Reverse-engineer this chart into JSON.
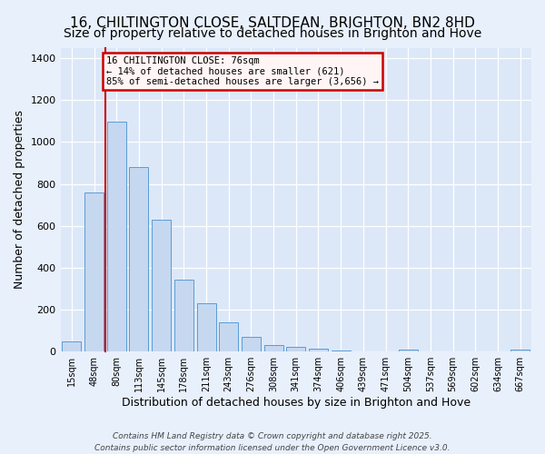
{
  "title": "16, CHILTINGTON CLOSE, SALTDEAN, BRIGHTON, BN2 8HD",
  "subtitle": "Size of property relative to detached houses in Brighton and Hove",
  "xlabel": "Distribution of detached houses by size in Brighton and Hove",
  "ylabel": "Number of detached properties",
  "categories": [
    "15sqm",
    "48sqm",
    "80sqm",
    "113sqm",
    "145sqm",
    "178sqm",
    "211sqm",
    "243sqm",
    "276sqm",
    "308sqm",
    "341sqm",
    "374sqm",
    "406sqm",
    "439sqm",
    "471sqm",
    "504sqm",
    "537sqm",
    "569sqm",
    "602sqm",
    "634sqm",
    "667sqm"
  ],
  "bar_heights": [
    50,
    760,
    1095,
    880,
    630,
    345,
    230,
    140,
    70,
    32,
    22,
    14,
    7,
    0,
    0,
    10,
    0,
    0,
    0,
    0,
    10
  ],
  "bar_color": "#c5d8f0",
  "bar_edge_color": "#5b9bd5",
  "annotation_text": "16 CHILTINGTON CLOSE: 76sqm\n← 14% of detached houses are smaller (621)\n85% of semi-detached houses are larger (3,656) →",
  "red_line_x": 2.0,
  "footer_line1": "Contains HM Land Registry data © Crown copyright and database right 2025.",
  "footer_line2": "Contains public sector information licensed under the Open Government Licence v3.0.",
  "ylim": [
    0,
    1450
  ],
  "yticks": [
    0,
    200,
    400,
    600,
    800,
    1000,
    1200,
    1400
  ],
  "plot_bg": "#dce8f8",
  "fig_bg": "#e8f0fc",
  "grid_color": "#ffffff",
  "title_fontsize": 11,
  "subtitle_fontsize": 10,
  "xlabel_fontsize": 9,
  "ylabel_fontsize": 9,
  "tick_fontsize": 7,
  "annot_fontsize": 7.5,
  "footer_fontsize": 6.5
}
